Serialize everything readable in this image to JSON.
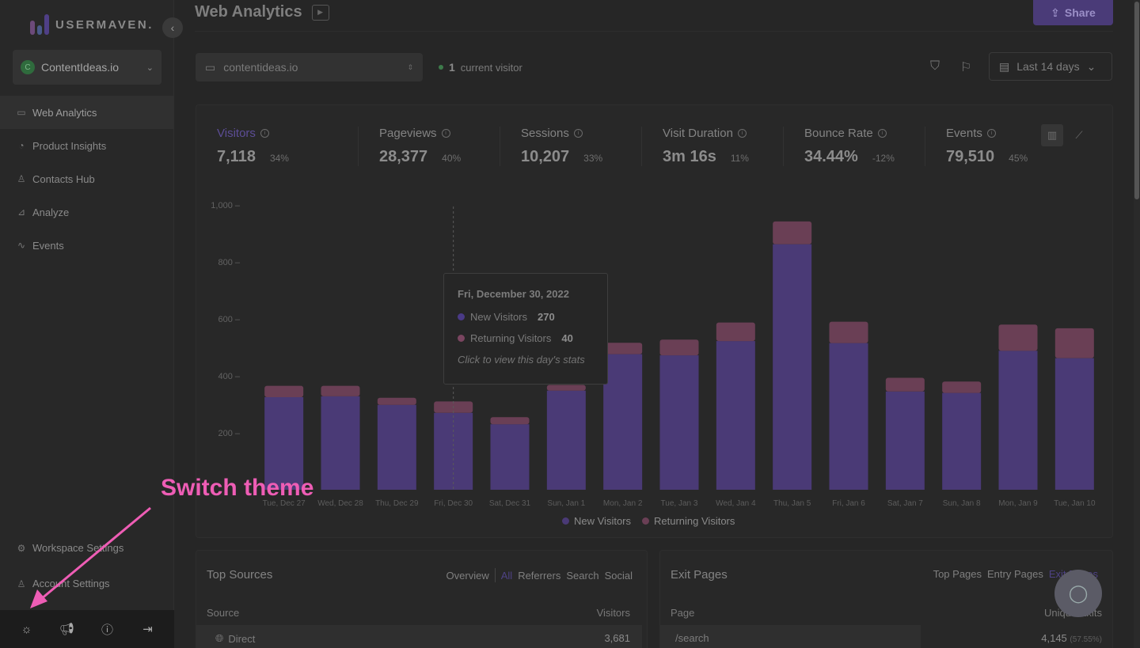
{
  "sidebar": {
    "logo_text": "USERMAVEN.",
    "workspace": {
      "avatar_letter": "C",
      "name": "ContentIdeas.io"
    },
    "items": [
      {
        "label": "Web Analytics",
        "icon": "browser-icon"
      },
      {
        "label": "Product Insights",
        "icon": "pie-icon"
      },
      {
        "label": "Contacts Hub",
        "icon": "user-icon"
      },
      {
        "label": "Analyze",
        "icon": "chart-icon"
      },
      {
        "label": "Events",
        "icon": "pulse-icon"
      }
    ],
    "bottom_items": [
      {
        "label": "Workspace Settings",
        "icon": "gear-icon"
      },
      {
        "label": "Account Settings",
        "icon": "users-icon"
      }
    ],
    "footer_icons": [
      "sun-icon",
      "megaphone-icon",
      "help-icon",
      "logout-icon"
    ]
  },
  "header": {
    "title": "Web Analytics",
    "share_label": "Share"
  },
  "toolbar": {
    "domain": "contentideas.io",
    "visitor_count": "1",
    "visitor_label": "current visitor",
    "date_range": "Last 14 days"
  },
  "metrics": [
    {
      "label": "Visitors",
      "value": "7,118",
      "change": "34%"
    },
    {
      "label": "Pageviews",
      "value": "28,377",
      "change": "40%"
    },
    {
      "label": "Sessions",
      "value": "10,207",
      "change": "33%"
    },
    {
      "label": "Visit Duration",
      "value": "3m 16s",
      "change": "11%"
    },
    {
      "label": "Bounce Rate",
      "value": "34.44%",
      "change": "-12%"
    },
    {
      "label": "Events",
      "value": "79,510",
      "change": "45%"
    }
  ],
  "chart_data": {
    "type": "bar",
    "stacked": true,
    "categories": [
      "Tue, Dec 27",
      "Wed, Dec 28",
      "Thu, Dec 29",
      "Fri, Dec 30",
      "Sat, Dec 31",
      "Sun, Jan 1",
      "Mon, Jan 2",
      "Tue, Jan 3",
      "Wed, Jan 4",
      "Thu, Jan 5",
      "Fri, Jan 6",
      "Sat, Jan 7",
      "Sun, Jan 8",
      "Mon, Jan 9",
      "Tue, Jan 10"
    ],
    "series": [
      {
        "name": "New Visitors",
        "color": "#4a3a76",
        "values": [
          325,
          328,
          298,
          270,
          230,
          348,
          476,
          472,
          522,
          862,
          515,
          345,
          340,
          488,
          462
        ]
      },
      {
        "name": "Returning Visitors",
        "color": "#6a3f55",
        "values": [
          40,
          37,
          25,
          40,
          25,
          20,
          40,
          55,
          65,
          80,
          75,
          48,
          40,
          92,
          105
        ]
      }
    ],
    "yticks": [
      "1,000",
      "800",
      "600",
      "400",
      "200"
    ],
    "ylim": [
      0,
      1000
    ],
    "grid": false,
    "legend": "bottom-center"
  },
  "tooltip": {
    "title": "Fri, December 30, 2022",
    "new_label": "New Visitors",
    "new_value": "270",
    "returning_label": "Returning Visitors",
    "returning_value": "40",
    "hint": "Click to view this day's stats"
  },
  "top_sources": {
    "title": "Top Sources",
    "tabs": [
      "Overview",
      "All",
      "Referrers",
      "Search",
      "Social"
    ],
    "col_source": "Source",
    "col_visitors": "Visitors",
    "row_label": "Direct",
    "row_value": "3,681"
  },
  "exit_pages": {
    "title": "Exit Pages",
    "tabs": [
      "Top Pages",
      "Entry Pages",
      "Exit Pages"
    ],
    "col_page": "Page",
    "col_exits": "Unique Exits",
    "row_label": "/search",
    "row_value": "4,145",
    "row_pct": "(57.55%)"
  },
  "annotation": {
    "label": "Switch theme",
    "color": "#ee5db5"
  },
  "colors": {
    "accent": "#4a3b78",
    "new_visitors": "#4a3a76",
    "returning_visitors": "#6a3f55"
  }
}
